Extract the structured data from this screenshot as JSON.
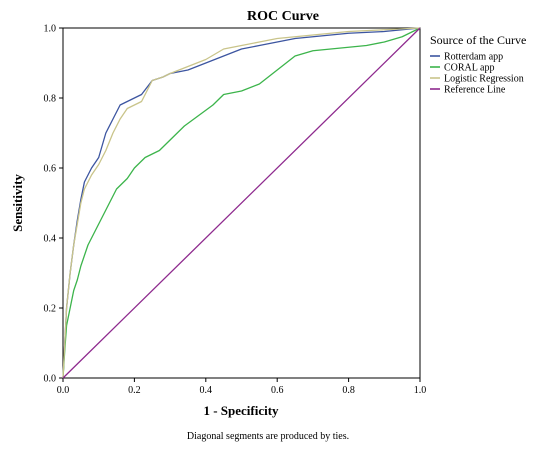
{
  "chart_data": {
    "type": "line",
    "title": "ROC Curve",
    "xlabel": "1 - Specificity",
    "ylabel": "Sensitivity",
    "xlim": [
      0,
      1
    ],
    "ylim": [
      0,
      1
    ],
    "x_ticks": [
      "0.0",
      "0.2",
      "0.4",
      "0.6",
      "0.8",
      "1.0"
    ],
    "y_ticks": [
      "0.0",
      "0.2",
      "0.4",
      "0.6",
      "0.8",
      "1.0"
    ],
    "grid": false,
    "legend": {
      "title": "Source of the Curve",
      "position": "right"
    },
    "footnote": "Diagonal segments are produced by ties.",
    "series": [
      {
        "name": "Rotterdam app",
        "color": "#3c55a0",
        "points": [
          [
            0,
            0
          ],
          [
            0.005,
            0.1
          ],
          [
            0.01,
            0.2
          ],
          [
            0.02,
            0.3
          ],
          [
            0.03,
            0.38
          ],
          [
            0.04,
            0.45
          ],
          [
            0.05,
            0.51
          ],
          [
            0.06,
            0.56
          ],
          [
            0.08,
            0.6
          ],
          [
            0.1,
            0.63
          ],
          [
            0.12,
            0.7
          ],
          [
            0.14,
            0.74
          ],
          [
            0.16,
            0.78
          ],
          [
            0.18,
            0.79
          ],
          [
            0.2,
            0.8
          ],
          [
            0.22,
            0.81
          ],
          [
            0.25,
            0.85
          ],
          [
            0.28,
            0.86
          ],
          [
            0.3,
            0.87
          ],
          [
            0.35,
            0.88
          ],
          [
            0.4,
            0.9
          ],
          [
            0.45,
            0.92
          ],
          [
            0.5,
            0.94
          ],
          [
            0.55,
            0.95
          ],
          [
            0.6,
            0.96
          ],
          [
            0.65,
            0.97
          ],
          [
            0.7,
            0.975
          ],
          [
            0.8,
            0.985
          ],
          [
            0.9,
            0.99
          ],
          [
            0.95,
            0.995
          ],
          [
            1.0,
            1.0
          ]
        ]
      },
      {
        "name": "CORAL app",
        "color": "#3cb44b",
        "points": [
          [
            0,
            0
          ],
          [
            0.005,
            0.08
          ],
          [
            0.01,
            0.15
          ],
          [
            0.02,
            0.2
          ],
          [
            0.03,
            0.25
          ],
          [
            0.04,
            0.28
          ],
          [
            0.05,
            0.32
          ],
          [
            0.07,
            0.38
          ],
          [
            0.09,
            0.42
          ],
          [
            0.11,
            0.46
          ],
          [
            0.13,
            0.5
          ],
          [
            0.15,
            0.54
          ],
          [
            0.18,
            0.57
          ],
          [
            0.2,
            0.6
          ],
          [
            0.23,
            0.63
          ],
          [
            0.27,
            0.65
          ],
          [
            0.3,
            0.68
          ],
          [
            0.34,
            0.72
          ],
          [
            0.38,
            0.75
          ],
          [
            0.42,
            0.78
          ],
          [
            0.45,
            0.81
          ],
          [
            0.5,
            0.82
          ],
          [
            0.55,
            0.84
          ],
          [
            0.6,
            0.88
          ],
          [
            0.65,
            0.92
          ],
          [
            0.7,
            0.935
          ],
          [
            0.75,
            0.94
          ],
          [
            0.8,
            0.945
          ],
          [
            0.85,
            0.95
          ],
          [
            0.9,
            0.96
          ],
          [
            0.95,
            0.975
          ],
          [
            1.0,
            1.0
          ]
        ]
      },
      {
        "name": "Logistic Regression",
        "color": "#c9c48a",
        "points": [
          [
            0,
            0
          ],
          [
            0.005,
            0.1
          ],
          [
            0.01,
            0.2
          ],
          [
            0.02,
            0.3
          ],
          [
            0.03,
            0.38
          ],
          [
            0.04,
            0.44
          ],
          [
            0.05,
            0.5
          ],
          [
            0.06,
            0.54
          ],
          [
            0.08,
            0.58
          ],
          [
            0.1,
            0.61
          ],
          [
            0.12,
            0.65
          ],
          [
            0.14,
            0.7
          ],
          [
            0.16,
            0.74
          ],
          [
            0.18,
            0.77
          ],
          [
            0.2,
            0.78
          ],
          [
            0.22,
            0.79
          ],
          [
            0.25,
            0.85
          ],
          [
            0.28,
            0.86
          ],
          [
            0.3,
            0.87
          ],
          [
            0.35,
            0.89
          ],
          [
            0.4,
            0.91
          ],
          [
            0.45,
            0.94
          ],
          [
            0.5,
            0.95
          ],
          [
            0.55,
            0.96
          ],
          [
            0.6,
            0.97
          ],
          [
            0.7,
            0.98
          ],
          [
            0.8,
            0.99
          ],
          [
            0.9,
            0.995
          ],
          [
            1.0,
            1.0
          ]
        ]
      },
      {
        "name": "Reference Line",
        "color": "#8e2a8e",
        "points": [
          [
            0,
            0
          ],
          [
            1,
            1
          ]
        ]
      }
    ]
  }
}
